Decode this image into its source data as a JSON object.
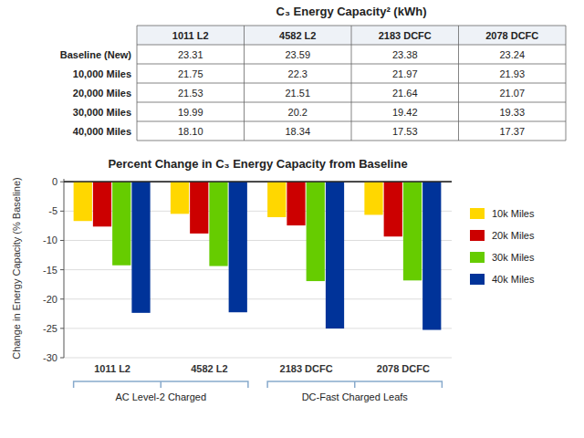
{
  "chart_data": [
    {
      "type": "table",
      "title": "C₃ Energy Capacity² (kWh)",
      "columns": [
        "1011 L2",
        "4582 L2",
        "2183 DCFC",
        "2078 DCFC"
      ],
      "rows": [
        "Baseline (New)",
        "10,000 Miles",
        "20,000 Miles",
        "30,000 Miles",
        "40,000 Miles"
      ],
      "values": [
        [
          23.31,
          23.59,
          23.38,
          23.24
        ],
        [
          21.75,
          22.3,
          21.97,
          21.93
        ],
        [
          21.53,
          21.51,
          21.64,
          21.07
        ],
        [
          19.99,
          20.2,
          19.42,
          19.33
        ],
        [
          18.1,
          18.34,
          17.53,
          17.37
        ]
      ],
      "value_labels": [
        [
          "23.31",
          "23.59",
          "23.38",
          "23.24"
        ],
        [
          "21.75",
          "22.3",
          "21.97",
          "21.93"
        ],
        [
          "21.53",
          "21.51",
          "21.64",
          "21.07"
        ],
        [
          "19.99",
          "20.2",
          "19.42",
          "19.33"
        ],
        [
          "18.10",
          "18.34",
          "17.53",
          "17.37"
        ]
      ]
    },
    {
      "type": "bar",
      "title": "Percent Change in C₃ Energy Capacity from Baseline",
      "y_label": "Change in Energy Capacity (% Baseline)",
      "categories": [
        "1011 L2",
        "4582 L2",
        "2183 DCFC",
        "2078 DCFC"
      ],
      "series": [
        {
          "name": "10k Miles",
          "color": "#FFD700",
          "values": [
            -6.692,
            -5.468,
            -6.031,
            -5.637
          ]
        },
        {
          "name": "20k Miles",
          "color": "#CC0000",
          "values": [
            -7.636,
            -8.817,
            -7.442,
            -9.337
          ]
        },
        {
          "name": "30k Miles",
          "color": "#66CC00",
          "values": [
            -14.243,
            -14.37,
            -16.938,
            -16.824
          ]
        },
        {
          "name": "40k Miles",
          "color": "#003399",
          "values": [
            -22.351,
            -22.255,
            -25.021,
            -25.258
          ]
        }
      ],
      "ylim": [
        -30,
        0.5
      ],
      "yticks": [
        0,
        -5,
        -10,
        -15,
        -20,
        -25,
        -30
      ],
      "grid": true,
      "legend": "right",
      "annotations": [
        {
          "text": "AC Level-2 Charged",
          "categories": [
            "1011 L2",
            "4582 L2"
          ]
        },
        {
          "text": "DC-Fast Charged Leafs",
          "categories": [
            "2183 DCFC",
            "2078 DCFC"
          ]
        }
      ]
    }
  ]
}
